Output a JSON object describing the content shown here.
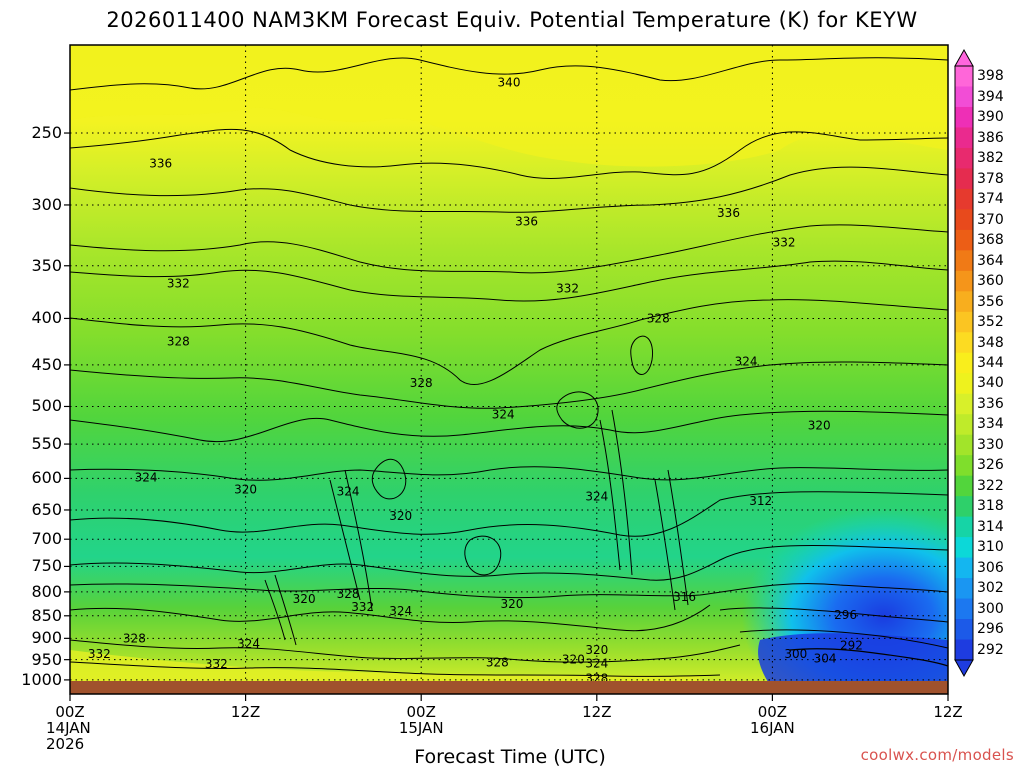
{
  "chart_data": {
    "type": "heatmap",
    "title": "2026011400 NAM3KM Forecast Equiv. Potential Temperature (K) for KEYW",
    "xlabel": "Forecast Time (UTC)",
    "ylabel": "",
    "credit": "coolwx.com/models",
    "x_range_hours": [
      0,
      60
    ],
    "y_range_hpa": [
      200,
      1013
    ],
    "y_ticks": [
      "250",
      "300",
      "350",
      "400",
      "450",
      "500",
      "550",
      "600",
      "650",
      "700",
      "750",
      "800",
      "850",
      "900",
      "950",
      "1000"
    ],
    "y_tick_values": [
      250,
      300,
      350,
      400,
      450,
      500,
      550,
      600,
      650,
      700,
      750,
      800,
      850,
      900,
      950,
      1000
    ],
    "x_ticks": [
      {
        "hour": 0,
        "lines": [
          "00Z",
          "14JAN",
          "2026"
        ]
      },
      {
        "hour": 12,
        "lines": [
          "12Z"
        ]
      },
      {
        "hour": 24,
        "lines": [
          "00Z",
          "15JAN"
        ]
      },
      {
        "hour": 36,
        "lines": [
          "12Z"
        ]
      },
      {
        "hour": 48,
        "lines": [
          "00Z",
          "16JAN"
        ]
      },
      {
        "hour": 60,
        "lines": [
          "12Z"
        ]
      }
    ],
    "colorbar": {
      "labels": [
        "398",
        "394",
        "390",
        "386",
        "382",
        "378",
        "374",
        "370",
        "368",
        "364",
        "360",
        "356",
        "352",
        "348",
        "344",
        "340",
        "336",
        "334",
        "330",
        "326",
        "322",
        "318",
        "314",
        "310",
        "306",
        "302",
        "300",
        "296",
        "292"
      ],
      "colors": [
        "#ff66d9",
        "#f24dd6",
        "#ee2fb6",
        "#ea2a8e",
        "#e82a6e",
        "#e52c4f",
        "#e63a2e",
        "#e84a1c",
        "#ec5e16",
        "#f07a16",
        "#f5951a",
        "#f8ae1e",
        "#fbc522",
        "#fcdb22",
        "#f9ee1c",
        "#eef21e",
        "#d8f02a",
        "#bfeb2a",
        "#a2e42a",
        "#7fde2c",
        "#52d53c",
        "#2ed06a",
        "#16d4a6",
        "#0cd8d8",
        "#14b6f0",
        "#1a96f2",
        "#1c78f0",
        "#1c5ae8",
        "#1e3ce0"
      ]
    },
    "contour_labels": [
      {
        "text": "340",
        "t": 30.0,
        "p": 220
      },
      {
        "text": "336",
        "t": 6.2,
        "p": 270
      },
      {
        "text": "336",
        "t": 31.2,
        "p": 313
      },
      {
        "text": "336",
        "t": 45.0,
        "p": 306
      },
      {
        "text": "332",
        "t": 48.8,
        "p": 330
      },
      {
        "text": "332",
        "t": 7.4,
        "p": 366
      },
      {
        "text": "332",
        "t": 34.0,
        "p": 371
      },
      {
        "text": "328",
        "t": 7.4,
        "p": 424
      },
      {
        "text": "328",
        "t": 40.2,
        "p": 400
      },
      {
        "text": "328",
        "t": 24.0,
        "p": 471
      },
      {
        "text": "324",
        "t": 46.2,
        "p": 446
      },
      {
        "text": "324",
        "t": 29.6,
        "p": 510
      },
      {
        "text": "320",
        "t": 51.2,
        "p": 525
      },
      {
        "text": "324",
        "t": 5.2,
        "p": 599
      },
      {
        "text": "320",
        "t": 12.0,
        "p": 617
      },
      {
        "text": "324",
        "t": 19.0,
        "p": 620
      },
      {
        "text": "324",
        "t": 36.0,
        "p": 628
      },
      {
        "text": "312",
        "t": 47.2,
        "p": 635
      },
      {
        "text": "320",
        "t": 22.6,
        "p": 660
      },
      {
        "text": "316",
        "t": 42.0,
        "p": 810
      },
      {
        "text": "328",
        "t": 19.0,
        "p": 804
      },
      {
        "text": "320",
        "t": 16.0,
        "p": 815
      },
      {
        "text": "332",
        "t": 20.0,
        "p": 831
      },
      {
        "text": "324",
        "t": 22.6,
        "p": 840
      },
      {
        "text": "320",
        "t": 30.2,
        "p": 825
      },
      {
        "text": "296",
        "t": 53.0,
        "p": 848
      },
      {
        "text": "328",
        "t": 4.4,
        "p": 900
      },
      {
        "text": "324",
        "t": 12.2,
        "p": 913
      },
      {
        "text": "320",
        "t": 36.0,
        "p": 927
      },
      {
        "text": "292",
        "t": 53.4,
        "p": 917
      },
      {
        "text": "332",
        "t": 2.0,
        "p": 937
      },
      {
        "text": "300",
        "t": 49.6,
        "p": 937
      },
      {
        "text": "304",
        "t": 51.6,
        "p": 947
      },
      {
        "text": "328",
        "t": 29.2,
        "p": 957
      },
      {
        "text": "320",
        "t": 34.4,
        "p": 950
      },
      {
        "text": "324",
        "t": 36.0,
        "p": 959
      },
      {
        "text": "332",
        "t": 10.0,
        "p": 961
      },
      {
        "text": "328",
        "t": 36.0,
        "p": 997
      }
    ]
  }
}
